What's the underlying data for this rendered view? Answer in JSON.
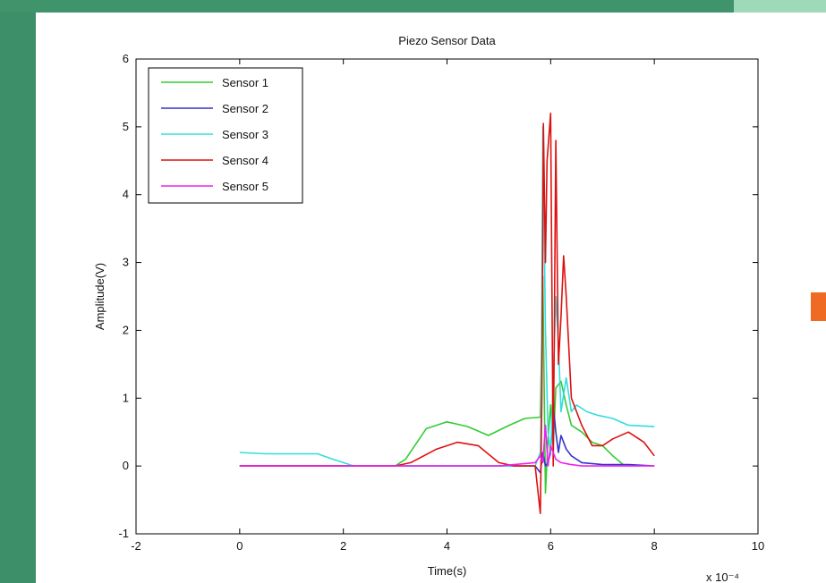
{
  "colors": {
    "slide_bg": "#3c8f68",
    "slide_band": "#3f946b",
    "band_accent": "#9ed9b8",
    "panel": "#ffffff",
    "marker": "#ef6a22"
  },
  "chart_data": {
    "type": "line",
    "title": "Piezo Sensor Data",
    "xlabel": "Time(s)",
    "ylabel": "Amplitude(V)",
    "x_multiplier": "x 10⁻⁴",
    "xlim": [
      -2,
      10
    ],
    "ylim": [
      -1,
      6
    ],
    "xticks": [
      -2,
      0,
      2,
      4,
      6,
      8,
      10
    ],
    "yticks": [
      -1,
      0,
      1,
      2,
      3,
      4,
      5,
      6
    ],
    "grid": false,
    "legend_position": "top-left",
    "series": [
      {
        "name": "Sensor 1",
        "color": "#33cc33",
        "x": [
          0,
          1,
          2,
          3,
          3.2,
          3.6,
          4,
          4.4,
          4.8,
          5.2,
          5.5,
          5.8,
          5.85,
          5.9,
          5.95,
          6.0,
          6.05,
          6.1,
          6.2,
          6.3,
          6.4,
          6.6,
          6.8,
          7.0,
          7.2,
          7.4
        ],
        "y": [
          0,
          0,
          0,
          0,
          0.1,
          0.55,
          0.65,
          0.58,
          0.45,
          0.6,
          0.7,
          0.72,
          2.8,
          -0.4,
          0.4,
          0.9,
          0.3,
          1.15,
          1.25,
          0.9,
          0.6,
          0.5,
          0.35,
          0.3,
          0.15,
          0.02
        ]
      },
      {
        "name": "Sensor 2",
        "color": "#3333cc",
        "x": [
          0,
          1,
          2,
          3,
          4,
          5,
          5.7,
          5.8,
          5.85,
          5.9,
          5.95,
          6.0,
          6.05,
          6.1,
          6.15,
          6.2,
          6.3,
          6.4,
          6.6,
          7.0,
          7.5,
          8.0
        ],
        "y": [
          0,
          0,
          0,
          0,
          0,
          0,
          0,
          -0.1,
          0.2,
          0,
          0.05,
          0.2,
          0.9,
          0.5,
          0.2,
          0.45,
          0.25,
          0.15,
          0.05,
          0.02,
          0.02,
          0.0
        ]
      },
      {
        "name": "Sensor 3",
        "color": "#33dddd",
        "x": [
          0,
          0.5,
          1,
          1.5,
          1.8,
          2.2,
          3,
          4,
          5,
          5.7,
          5.8,
          5.82,
          5.85,
          5.9,
          5.95,
          6.0,
          6.05,
          6.1,
          6.15,
          6.2,
          6.3,
          6.4,
          6.5,
          6.7,
          6.9,
          7.2,
          7.5,
          8.0
        ],
        "y": [
          0.2,
          0.18,
          0.18,
          0.18,
          0.1,
          0.0,
          0,
          0,
          0,
          0,
          0.2,
          1.0,
          5.0,
          2.0,
          0.5,
          0.2,
          1.2,
          2.5,
          1.8,
          0.8,
          1.3,
          0.8,
          0.9,
          0.8,
          0.75,
          0.7,
          0.6,
          0.58
        ]
      },
      {
        "name": "Sensor 4",
        "color": "#dd1111",
        "x": [
          0,
          1,
          2,
          3,
          3.3,
          3.8,
          4.2,
          4.6,
          5.0,
          5.3,
          5.7,
          5.8,
          5.83,
          5.86,
          5.9,
          5.93,
          6.0,
          6.05,
          6.1,
          6.15,
          6.2,
          6.25,
          6.3,
          6.4,
          6.6,
          6.8,
          7.0,
          7.2,
          7.5,
          7.8,
          8.0
        ],
        "y": [
          0,
          0,
          0,
          0,
          0.05,
          0.25,
          0.35,
          0.3,
          0.05,
          0,
          0,
          -0.7,
          1.0,
          5.05,
          3.0,
          4.5,
          5.2,
          0.0,
          4.8,
          1.5,
          2.2,
          3.1,
          2.5,
          1.0,
          0.6,
          0.3,
          0.3,
          0.4,
          0.5,
          0.35,
          0.15
        ]
      },
      {
        "name": "Sensor 5",
        "color": "#ee22ee",
        "x": [
          0,
          1,
          2,
          3,
          4,
          5,
          5.7,
          5.8,
          5.85,
          5.9,
          5.95,
          6.0,
          6.1,
          6.2,
          6.4,
          6.6,
          7.0,
          8.0
        ],
        "y": [
          0,
          0,
          0,
          0,
          0,
          0,
          0.05,
          0.15,
          0.05,
          0.6,
          0.0,
          0.3,
          0.1,
          0.05,
          0.02,
          0.0,
          0.0,
          0.0
        ]
      }
    ]
  }
}
